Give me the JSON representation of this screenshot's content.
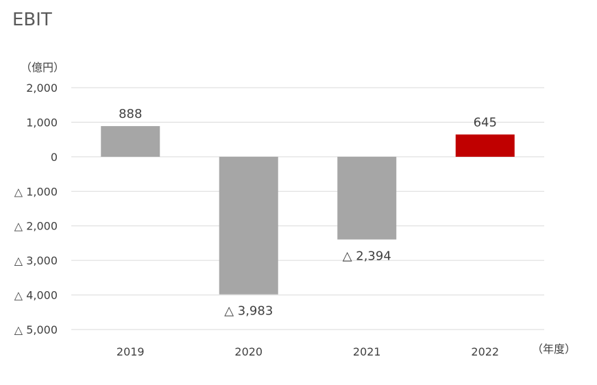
{
  "chart_data": {
    "type": "bar",
    "title": "EBIT",
    "ylabel": "（億円）",
    "xlabel": "（年度）",
    "categories": [
      "2019",
      "2020",
      "2021",
      "2022"
    ],
    "values": [
      888,
      -3983,
      -2394,
      645
    ],
    "data_labels": [
      "888",
      "△ 3,983",
      "△ 2,394",
      "645"
    ],
    "colors": [
      "#a6a6a6",
      "#a6a6a6",
      "#a6a6a6",
      "#c00000"
    ],
    "ylim": [
      -5000,
      2000
    ],
    "yticks": [
      {
        "value": 2000,
        "label": "2,000"
      },
      {
        "value": 1000,
        "label": "1,000"
      },
      {
        "value": 0,
        "label": "0"
      },
      {
        "value": -1000,
        "label": "△ 1,000"
      },
      {
        "value": -2000,
        "label": "△ 2,000"
      },
      {
        "value": -3000,
        "label": "△ 3,000"
      },
      {
        "value": -4000,
        "label": "△ 4,000"
      },
      {
        "value": -5000,
        "label": "△ 5,000"
      }
    ],
    "grid": true
  }
}
